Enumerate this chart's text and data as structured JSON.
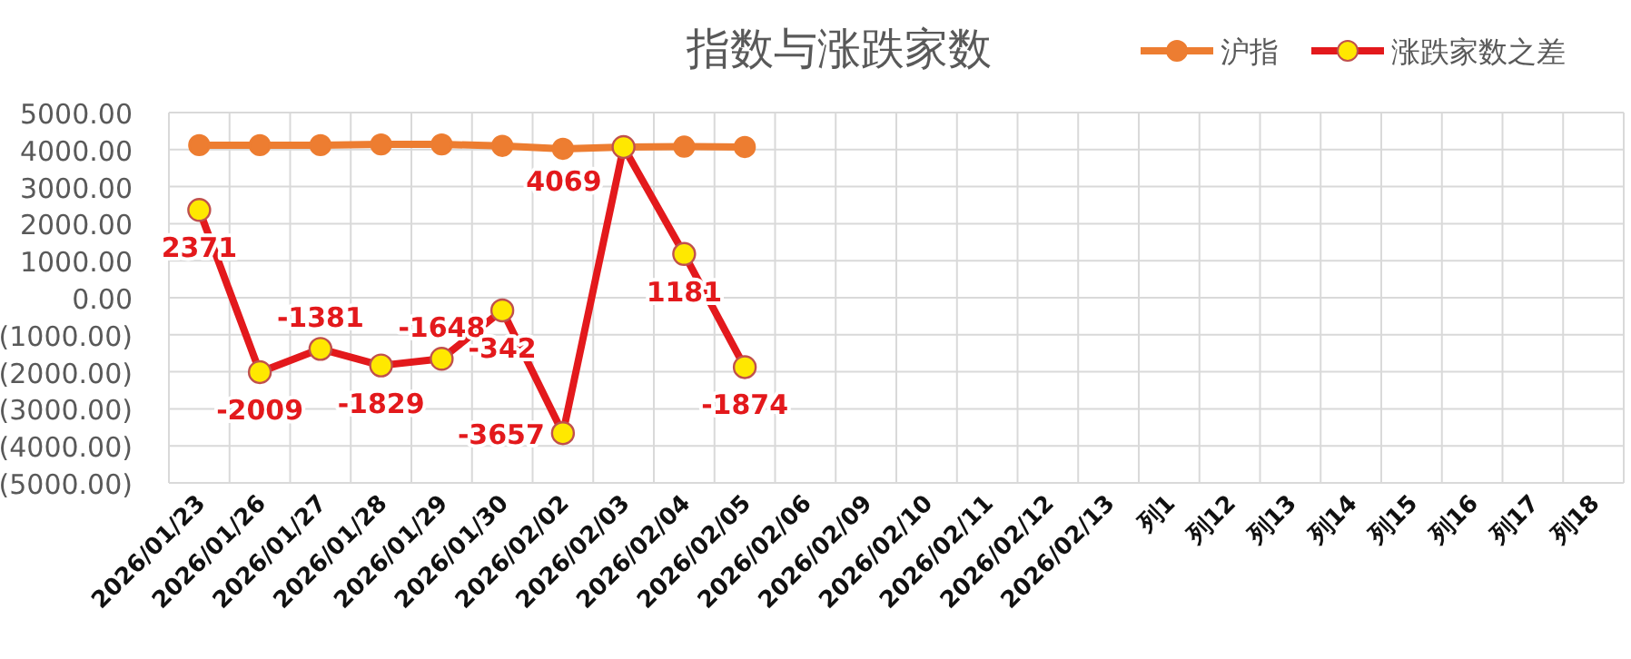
{
  "chart_data": {
    "type": "line",
    "title": "指数与涨跌家数",
    "categories": [
      "2026/01/23",
      "2026/01/26",
      "2026/01/27",
      "2026/01/28",
      "2026/01/29",
      "2026/01/30",
      "2026/02/02",
      "2026/02/03",
      "2026/02/04",
      "2026/02/05",
      "2026/02/06",
      "2026/02/09",
      "2026/02/10",
      "2026/02/11",
      "2026/02/12",
      "2026/02/13",
      "列1",
      "列12",
      "列13",
      "列14",
      "列15",
      "列16",
      "列17",
      "列18"
    ],
    "series": [
      {
        "name": "沪指",
        "color": "#ed7d31",
        "values": [
          4120,
          4120,
          4120,
          4140,
          4140,
          4100,
          4020,
          4070,
          4080,
          4070,
          null,
          null,
          null,
          null,
          null,
          null,
          null,
          null,
          null,
          null,
          null,
          null,
          null,
          null
        ]
      },
      {
        "name": "涨跌家数之差",
        "color": "#e3191c",
        "values": [
          2371,
          -2009,
          -1381,
          -1829,
          -1648,
          -342,
          -3657,
          4069,
          1181,
          -1874,
          null,
          null,
          null,
          null,
          null,
          null,
          null,
          null,
          null,
          null,
          null,
          null,
          null,
          null
        ],
        "data_labels": true
      }
    ],
    "ylim": [
      -5000,
      5000
    ],
    "yticks": [
      {
        "value": -5000,
        "label": "(5000.00)"
      },
      {
        "value": -4000,
        "label": "(4000.00)"
      },
      {
        "value": -3000,
        "label": "(3000.00)"
      },
      {
        "value": -2000,
        "label": "(2000.00)"
      },
      {
        "value": -1000,
        "label": "(1000.00)"
      },
      {
        "value": 0,
        "label": "0.00"
      },
      {
        "value": 1000,
        "label": "1000.00"
      },
      {
        "value": 2000,
        "label": "2000.00"
      },
      {
        "value": 3000,
        "label": "3000.00"
      },
      {
        "value": 4000,
        "label": "4000.00"
      },
      {
        "value": 5000,
        "label": "5000.00"
      }
    ],
    "grid": true,
    "legend": "top right",
    "marker": "circle",
    "line_style": "solid"
  }
}
